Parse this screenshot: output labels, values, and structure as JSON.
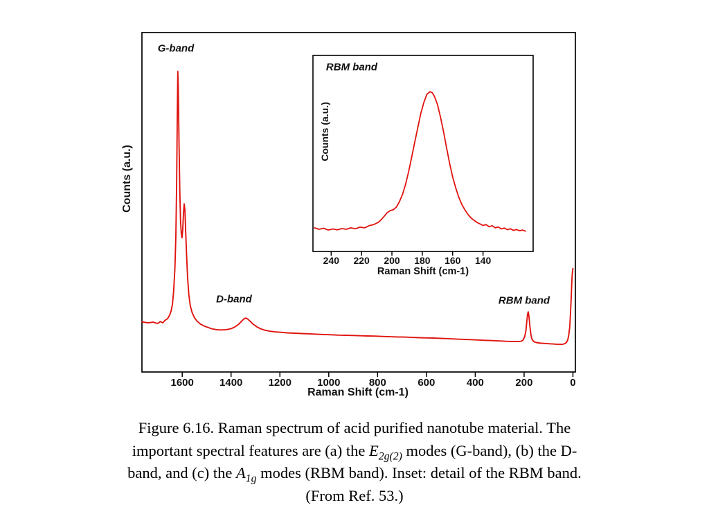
{
  "caption": {
    "line1": "Figure 6.16. Raman spectrum of acid purified nanotube material.  The",
    "line2": {
      "pre": "important spectral features are (a) the ",
      "sym": "E",
      "sub": "2g(2)",
      "post": " modes (G-band), (b) the D-"
    },
    "line3": {
      "pre": "band, and (c) the ",
      "sym": "A",
      "sub": "1g",
      "post": " modes (RBM band).  Inset: detail of the RBM band."
    },
    "line4": "(From Ref. 53.)"
  },
  "chart_data": [
    {
      "id": "main",
      "type": "line",
      "title": "",
      "xlabel": "Raman Shift (cm-1)",
      "ylabel": "Counts (a.u.)",
      "x_axis_reversed": true,
      "xlim": [
        1765,
        -10
      ],
      "ylim": [
        0,
        105
      ],
      "x_ticks": [
        1600,
        1400,
        1200,
        1000,
        800,
        600,
        400,
        200,
        0
      ],
      "grid": false,
      "line_color": "#e0140e",
      "axis_color": "#000000",
      "annotations": [
        {
          "text": "G-band",
          "near_x": 1618
        },
        {
          "text": "D-band",
          "near_x": 1340
        },
        {
          "text": "RBM band",
          "near_x": 183
        }
      ],
      "series": [
        {
          "name": "Raman spectrum of acid purified nanotube material",
          "points": [
            [
              1765,
              15.5
            ],
            [
              1740,
              15.2
            ],
            [
              1720,
              15.4
            ],
            [
              1700,
              15.0
            ],
            [
              1690,
              15.6
            ],
            [
              1680,
              15.2
            ],
            [
              1670,
              16.0
            ],
            [
              1660,
              16.5
            ],
            [
              1652,
              17.5
            ],
            [
              1645,
              19.0
            ],
            [
              1640,
              21.0
            ],
            [
              1635,
              25.0
            ],
            [
              1630,
              32.0
            ],
            [
              1626,
              42.0
            ],
            [
              1623,
              58.0
            ],
            [
              1620,
              80.0
            ],
            [
              1618,
              93.0
            ],
            [
              1616,
              88.0
            ],
            [
              1613,
              70.0
            ],
            [
              1610,
              56.0
            ],
            [
              1607,
              47.0
            ],
            [
              1604,
              43.0
            ],
            [
              1601,
              41.5
            ],
            [
              1598,
              44.0
            ],
            [
              1595,
              49.0
            ],
            [
              1592,
              52.0
            ],
            [
              1589,
              50.0
            ],
            [
              1586,
              44.0
            ],
            [
              1582,
              36.0
            ],
            [
              1578,
              29.0
            ],
            [
              1573,
              24.0
            ],
            [
              1567,
              20.5
            ],
            [
              1560,
              18.5
            ],
            [
              1550,
              16.8
            ],
            [
              1540,
              15.8
            ],
            [
              1525,
              14.8
            ],
            [
              1510,
              14.2
            ],
            [
              1495,
              13.8
            ],
            [
              1480,
              13.4
            ],
            [
              1460,
              13.1
            ],
            [
              1440,
              13.0
            ],
            [
              1420,
              13.1
            ],
            [
              1400,
              13.4
            ],
            [
              1385,
              13.9
            ],
            [
              1370,
              14.7
            ],
            [
              1358,
              15.6
            ],
            [
              1348,
              16.4
            ],
            [
              1340,
              16.7
            ],
            [
              1332,
              16.4
            ],
            [
              1322,
              15.7
            ],
            [
              1310,
              14.8
            ],
            [
              1295,
              14.0
            ],
            [
              1280,
              13.4
            ],
            [
              1260,
              12.9
            ],
            [
              1240,
              12.6
            ],
            [
              1220,
              12.4
            ],
            [
              1200,
              12.3
            ],
            [
              1170,
              12.1
            ],
            [
              1140,
              12.0
            ],
            [
              1110,
              11.9
            ],
            [
              1080,
              11.8
            ],
            [
              1050,
              11.7
            ],
            [
              1020,
              11.6
            ],
            [
              990,
              11.5
            ],
            [
              960,
              11.4
            ],
            [
              930,
              11.35
            ],
            [
              900,
              11.3
            ],
            [
              870,
              11.2
            ],
            [
              840,
              11.15
            ],
            [
              810,
              11.1
            ],
            [
              780,
              11.0
            ],
            [
              750,
              10.9
            ],
            [
              720,
              10.85
            ],
            [
              690,
              10.8
            ],
            [
              660,
              10.7
            ],
            [
              630,
              10.6
            ],
            [
              600,
              10.55
            ],
            [
              570,
              10.5
            ],
            [
              540,
              10.4
            ],
            [
              510,
              10.3
            ],
            [
              480,
              10.2
            ],
            [
              450,
              10.1
            ],
            [
              420,
              10.0
            ],
            [
              390,
              9.9
            ],
            [
              360,
              9.8
            ],
            [
              330,
              9.7
            ],
            [
              300,
              9.6
            ],
            [
              275,
              9.5
            ],
            [
              255,
              9.45
            ],
            [
              240,
              9.4
            ],
            [
              225,
              9.4
            ],
            [
              213,
              9.5
            ],
            [
              205,
              9.8
            ],
            [
              198,
              10.8
            ],
            [
              193,
              12.5
            ],
            [
              189,
              15.5
            ],
            [
              186,
              17.8
            ],
            [
              183,
              18.6
            ],
            [
              180,
              17.2
            ],
            [
              176,
              14.0
            ],
            [
              172,
              11.5
            ],
            [
              168,
              10.2
            ],
            [
              163,
              9.6
            ],
            [
              158,
              9.3
            ],
            [
              150,
              9.1
            ],
            [
              140,
              9.0
            ],
            [
              130,
              8.9
            ],
            [
              120,
              8.85
            ],
            [
              110,
              8.8
            ],
            [
              100,
              8.75
            ],
            [
              90,
              8.7
            ],
            [
              80,
              8.65
            ],
            [
              70,
              8.6
            ],
            [
              60,
              8.6
            ],
            [
              50,
              8.55
            ],
            [
              40,
              8.6
            ],
            [
              32,
              8.8
            ],
            [
              26,
              9.2
            ],
            [
              21,
              10.0
            ],
            [
              17,
              11.5
            ],
            [
              13,
              14.0
            ],
            [
              10,
              18.0
            ],
            [
              7,
              23.0
            ],
            [
              5,
              27.0
            ],
            [
              3,
              30.0
            ],
            [
              1,
              31.5
            ],
            [
              0,
              32.0
            ]
          ]
        }
      ]
    },
    {
      "id": "inset",
      "type": "line",
      "title": "",
      "xlabel": "Raman Shift (cm-1)",
      "ylabel": "Counts (a.u.)",
      "x_axis_reversed": true,
      "xlim": [
        252,
        107
      ],
      "ylim": [
        0,
        108
      ],
      "x_ticks": [
        240,
        220,
        200,
        180,
        160,
        140
      ],
      "grid": false,
      "line_color": "#e0140e",
      "axis_color": "#000000",
      "annotations": [
        {
          "text": "RBM band",
          "near_x": 240
        }
      ],
      "series": [
        {
          "name": "RBM band detail",
          "points": [
            [
              251,
              13.0
            ],
            [
              248,
              12.2
            ],
            [
              245,
              12.8
            ],
            [
              242,
              11.8
            ],
            [
              239,
              12.4
            ],
            [
              236,
              11.9
            ],
            [
              233,
              12.6
            ],
            [
              230,
              12.2
            ],
            [
              227,
              13.0
            ],
            [
              224,
              12.5
            ],
            [
              221,
              13.4
            ],
            [
              218,
              13.0
            ],
            [
              215,
              14.2
            ],
            [
              212,
              14.8
            ],
            [
              209,
              16.0
            ],
            [
              207,
              17.5
            ],
            [
              205,
              19.5
            ],
            [
              203,
              21.5
            ],
            [
              201,
              22.5
            ],
            [
              199,
              23.0
            ],
            [
              197,
              24.5
            ],
            [
              195,
              27.5
            ],
            [
              193,
              31.5
            ],
            [
              191,
              37.0
            ],
            [
              189,
              44.0
            ],
            [
              187,
              52.0
            ],
            [
              185,
              60.0
            ],
            [
              183,
              68.0
            ],
            [
              181,
              76.0
            ],
            [
              179,
              82.0
            ],
            [
              177,
              86.5
            ],
            [
              175,
              88.0
            ],
            [
              173.5,
              87.5
            ],
            [
              172,
              85.5
            ],
            [
              170,
              81.0
            ],
            [
              168,
              74.0
            ],
            [
              166,
              66.0
            ],
            [
              164,
              57.0
            ],
            [
              162,
              48.5
            ],
            [
              160,
              41.0
            ],
            [
              158,
              35.0
            ],
            [
              156,
              30.0
            ],
            [
              154,
              26.0
            ],
            [
              152,
              23.0
            ],
            [
              150,
              20.5
            ],
            [
              148,
              18.5
            ],
            [
              146,
              17.2
            ],
            [
              144,
              16.0
            ],
            [
              142,
              15.2
            ],
            [
              140,
              14.3
            ],
            [
              138,
              14.8
            ],
            [
              136,
              13.6
            ],
            [
              134,
              14.2
            ],
            [
              132,
              13.0
            ],
            [
              130,
              13.5
            ],
            [
              128,
              12.4
            ],
            [
              126,
              12.9
            ],
            [
              124,
              12.0
            ],
            [
              122,
              12.5
            ],
            [
              120,
              11.6
            ],
            [
              118,
              12.1
            ],
            [
              116,
              11.4
            ],
            [
              114,
              11.8
            ],
            [
              112,
              11.2
            ]
          ]
        }
      ]
    }
  ]
}
